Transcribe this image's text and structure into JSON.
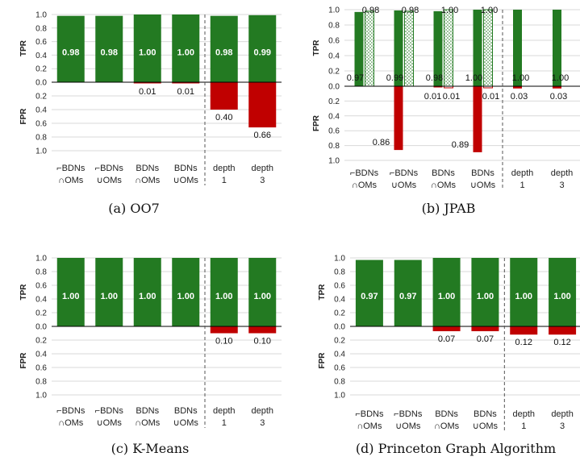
{
  "colors": {
    "tpr": "#237a22",
    "fpr": "#c00000",
    "hatch": "#237a22"
  },
  "chart_data": [
    {
      "type": "bar",
      "caption": "(a) OO7",
      "categories": [
        [
          "⌐BDNs",
          "∩OMs"
        ],
        [
          "⌐BDNs",
          "∪OMs"
        ],
        [
          "BDNs",
          "∩OMs"
        ],
        [
          "BDNs",
          "∪OMs"
        ],
        [
          "depth",
          "1"
        ],
        [
          "depth",
          "3"
        ]
      ],
      "tpr_values": [
        0.98,
        0.98,
        1.0,
        1.0,
        0.98,
        0.99
      ],
      "fpr_values": [
        0,
        0,
        0.01,
        0.01,
        0.4,
        0.66
      ],
      "tpr_labels": [
        "0.98",
        "0.98",
        "1.00",
        "1.00",
        "0.98",
        "0.99"
      ],
      "fpr_labels": [
        "",
        "",
        "0.01",
        "0.01",
        "0.40",
        "0.66"
      ],
      "ylabel_top": "TPR",
      "ylabel_bottom": "FPR",
      "yticks_top": [
        "1.0",
        "0.8",
        "0.6",
        "0.4",
        "0.2",
        "0.0"
      ],
      "yticks_bottom": [
        "0.2",
        "0.4",
        "0.6",
        "0.8",
        "1.0"
      ],
      "separator_after_index": 3
    },
    {
      "type": "bar",
      "caption": "(b) JPAB",
      "categories": [
        [
          "⌐BDNs",
          "∩OMs"
        ],
        [
          "⌐BDNs",
          "∪OMs"
        ],
        [
          "BDNs",
          "∩OMs"
        ],
        [
          "BDNs",
          "∪OMs"
        ],
        [
          "depth",
          "1"
        ],
        [
          "depth",
          "3"
        ]
      ],
      "tpr_values": [
        0.97,
        0.99,
        0.98,
        1.0,
        1.0,
        1.0
      ],
      "fpr_values": [
        0,
        0.86,
        0.01,
        0.89,
        0.03,
        0.03
      ],
      "hatched_tpr": [
        0.98,
        0.98,
        1.0,
        1.0,
        null,
        null
      ],
      "hatched_fpr": [
        0,
        0,
        0.01,
        0.01,
        null,
        null
      ],
      "tpr_labels": [
        "0.97",
        "0.99",
        "0.98",
        "1.00",
        "1.00",
        "1.00"
      ],
      "fpr_labels": [
        "",
        "0.86",
        "0.01",
        "0.89",
        "0.03",
        "0.03"
      ],
      "hatched_tpr_labels": [
        "0.98",
        "0.98",
        "1.00",
        "1.00",
        "",
        ""
      ],
      "hatched_fpr_labels": [
        "",
        "",
        "0.01",
        "0.01",
        "",
        ""
      ],
      "ylabel_top": "TPR",
      "ylabel_bottom": "FPR",
      "yticks_top": [
        "1.0",
        "0.8",
        "0.6",
        "0.4",
        "0.2",
        "0.0"
      ],
      "yticks_bottom": [
        "0.2",
        "0.4",
        "0.6",
        "0.8",
        "1.0"
      ],
      "separator_after_index": 3
    },
    {
      "type": "bar",
      "caption": "(c) K-Means",
      "categories": [
        [
          "⌐BDNs",
          "∩OMs"
        ],
        [
          "⌐BDNs",
          "∪OMs"
        ],
        [
          "BDNs",
          "∩OMs"
        ],
        [
          "BDNs",
          "∪OMs"
        ],
        [
          "depth",
          "1"
        ],
        [
          "depth",
          "3"
        ]
      ],
      "tpr_values": [
        1.0,
        1.0,
        1.0,
        1.0,
        1.0,
        1.0
      ],
      "fpr_values": [
        0,
        0,
        0,
        0,
        0.1,
        0.1
      ],
      "tpr_labels": [
        "1.00",
        "1.00",
        "1.00",
        "1.00",
        "1.00",
        "1.00"
      ],
      "fpr_labels": [
        "",
        "",
        "",
        "",
        "0.10",
        "0.10"
      ],
      "ylabel_top": "TPR",
      "ylabel_bottom": "FPR",
      "yticks_top": [
        "1.0",
        "0.8",
        "0.6",
        "0.4",
        "0.2",
        "0.0"
      ],
      "yticks_bottom": [
        "0.2",
        "0.4",
        "0.6",
        "0.8",
        "1.0"
      ],
      "separator_after_index": 3
    },
    {
      "type": "bar",
      "caption": "(d) Princeton Graph Algorithm",
      "categories": [
        [
          "⌐BDNs",
          "∩OMs"
        ],
        [
          "⌐BDNs",
          "∪OMs"
        ],
        [
          "BDNs",
          "∩OMs"
        ],
        [
          "BDNs",
          "∪OMs"
        ],
        [
          "depth",
          "1"
        ],
        [
          "depth",
          "3"
        ]
      ],
      "tpr_values": [
        0.97,
        0.97,
        1.0,
        1.0,
        1.0,
        1.0
      ],
      "fpr_values": [
        0,
        0,
        0.07,
        0.07,
        0.12,
        0.12
      ],
      "tpr_labels": [
        "0.97",
        "0.97",
        "1.00",
        "1.00",
        "1.00",
        "1.00"
      ],
      "fpr_labels": [
        "",
        "",
        "0.07",
        "0.07",
        "0.12",
        "0.12"
      ],
      "ylabel_top": "TPR",
      "ylabel_bottom": "FPR",
      "yticks_top": [
        "1.0",
        "0.8",
        "0.6",
        "0.4",
        "0.2",
        "0.0"
      ],
      "yticks_bottom": [
        "0.2",
        "0.4",
        "0.6",
        "0.8",
        "1.0"
      ],
      "separator_after_index": 3
    }
  ]
}
